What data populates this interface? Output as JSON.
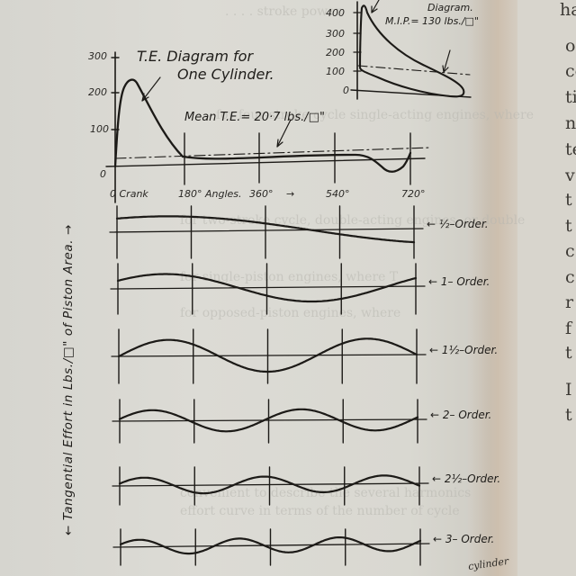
{
  "figure": {
    "te_diagram": {
      "title_line1": "T.E. Diagram for",
      "title_line2": "One Cylinder.",
      "mean_label": "Mean T.E.= 20·7 lbs./□\"",
      "y_ticks": [
        "300",
        "200",
        "100",
        "0"
      ],
      "x_label_parts": [
        "0 Crank",
        "180° Angles.",
        "360°",
        "→",
        "540°",
        "720°"
      ]
    },
    "indicator_diagram": {
      "label_fragment": "Diagram.",
      "mip_label": "M.I.P.= 130 lbs./□\"",
      "y_ticks": [
        "400",
        "300",
        "200",
        "100",
        "0"
      ]
    },
    "y_axis_label": "← Tangential Effort in Lbs./□\" of Piston Area. →",
    "orders": [
      {
        "label": "½–Order.",
        "cycles": 0.5
      },
      {
        "label": "1– Order.",
        "cycles": 1
      },
      {
        "label": "1½–Order.",
        "cycles": 1.5
      },
      {
        "label": "2– Order.",
        "cycles": 2
      },
      {
        "label": "2½–Order.",
        "cycles": 2.5
      },
      {
        "label": "3– Order.",
        "cycles": 3
      }
    ],
    "footer_fragment": "cylinder"
  },
  "right_page": {
    "letters": [
      "ha",
      "of",
      "co",
      "ti",
      "n",
      "te",
      "v",
      "t",
      "t",
      "c",
      "c",
      "r",
      "f",
      "t",
      "I",
      "t"
    ]
  },
  "chart_data": {
    "type": "line",
    "title": "T.E. Diagram for One Cylinder.",
    "xlabel": "Crank Angles",
    "ylabel": "Tangential Effort in Lbs./□\" of Piston Area",
    "x_ticks": [
      "0",
      "180°",
      "360°",
      "540°",
      "720°"
    ],
    "y_ticks": [
      0,
      100,
      200,
      300
    ],
    "ylim": [
      -30,
      300
    ],
    "xlim": [
      0,
      720
    ],
    "annotations": [
      "Mean T.E.= 20·7 lbs./□\"",
      "M.I.P.= 130 lbs./□\""
    ],
    "series": [
      {
        "name": "T.E. one cylinder",
        "x": [
          0,
          20,
          40,
          90,
          140,
          180,
          270,
          360,
          450,
          540,
          600,
          650,
          690,
          720
        ],
        "values": [
          0,
          180,
          230,
          160,
          60,
          5,
          8,
          15,
          20,
          25,
          15,
          -25,
          -10,
          20
        ]
      },
      {
        "name": "Mean T.E.",
        "x": [
          0,
          720
        ],
        "values": [
          20.7,
          20.7
        ]
      },
      {
        "name": "1/2-Order",
        "harmonic_cycles_per_720": 0.5
      },
      {
        "name": "1-Order",
        "harmonic_cycles_per_720": 1
      },
      {
        "name": "1 1/2-Order",
        "harmonic_cycles_per_720": 1.5
      },
      {
        "name": "2-Order",
        "harmonic_cycles_per_720": 2
      },
      {
        "name": "2 1/2-Order",
        "harmonic_cycles_per_720": 2.5
      },
      {
        "name": "3-Order",
        "harmonic_cycles_per_720": 3
      }
    ],
    "inset": {
      "title": "Indicator Diagram",
      "y_ticks": [
        0,
        100,
        200,
        300,
        400
      ],
      "mean_line": 130
    }
  }
}
